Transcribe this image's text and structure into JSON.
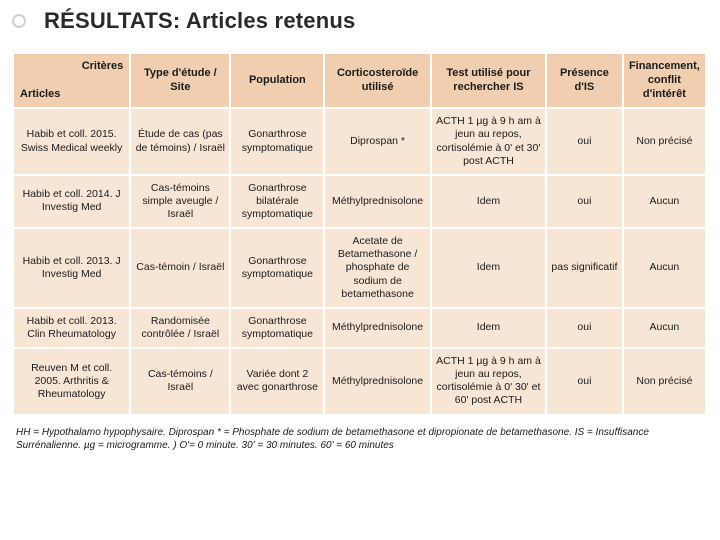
{
  "title_prefix": "RÉSULTATS:",
  "title_rest": " Articles retenus",
  "table": {
    "headers": {
      "diag_top": "Critères",
      "diag_bottom": "Articles",
      "col2": "Type d'étude / Site",
      "col3": "Population",
      "col4": "Corticosteroïde utilisé",
      "col5": "Test utilisé pour rechercher IS",
      "col6": "Présence d'IS",
      "col7": "Financement, conflit d'intérêt"
    },
    "col_widths": [
      "110px",
      "94px",
      "88px",
      "100px",
      "108px",
      "72px",
      "78px"
    ],
    "row_bg": "#f7e6d6",
    "header_bg": "#f0ceaf",
    "rows": [
      {
        "c1": "Habib et coll. 2015. Swiss Medical weekly",
        "c2": "Étude de cas (pas de témoins) / Israël",
        "c3": "Gonarthrose symptomatique",
        "c4": "Diprospan *",
        "c5": "ACTH 1 µg à 9 h am à jeun au repos, cortisolémie à 0' et 30' post ACTH",
        "c6": "oui",
        "c7": "Non précisé"
      },
      {
        "c1": "Habib et coll. 2014. J Investig Med",
        "c2": "Cas-témoins simple aveugle / Israël",
        "c3": "Gonarthrose bilatérale symptomatique",
        "c4": "Méthylprednisolone",
        "c5": "Idem",
        "c6": "oui",
        "c7": "Aucun"
      },
      {
        "c1": "Habib et coll. 2013. J Investig Med",
        "c2": "Cas-témoin / Israël",
        "c3": "Gonarthrose symptomatique",
        "c4": "Acetate de Betamethasone / phosphate de sodium de betamethasone",
        "c5": "Idem",
        "c6": "pas significatif",
        "c7": "Aucun"
      },
      {
        "c1": "Habib et coll. 2013. Clin Rheumatology",
        "c2": "Randomisée contrôlée / Israël",
        "c3": "Gonarthrose symptomatique",
        "c4": "Méthylprednisolone",
        "c5": "Idem",
        "c6": "oui",
        "c7": "Aucun"
      },
      {
        "c1": "Reuven M et coll. 2005. Arthritis & Rheumatology",
        "c2": "Cas-témoins / Israël",
        "c3": "Variée dont 2 avec gonarthrose",
        "c4": "Méthylprednisolone",
        "c5": "ACTH 1 µg à 9 h am à jeun au repos, cortisolémie à 0' 30' et 60' post ACTH",
        "c6": "oui",
        "c7": "Non précisé"
      }
    ]
  },
  "footnote": "HH = Hypothalamo hypophysaire. Diprospan * = Phosphate de sodium de betamethasone et dipropionate de betamethasone. IS = Insuffisance Surrénalienne. µg = microgramme. ) O'= 0 minute. 30' = 30 minutes. 60' = 60 minutes"
}
